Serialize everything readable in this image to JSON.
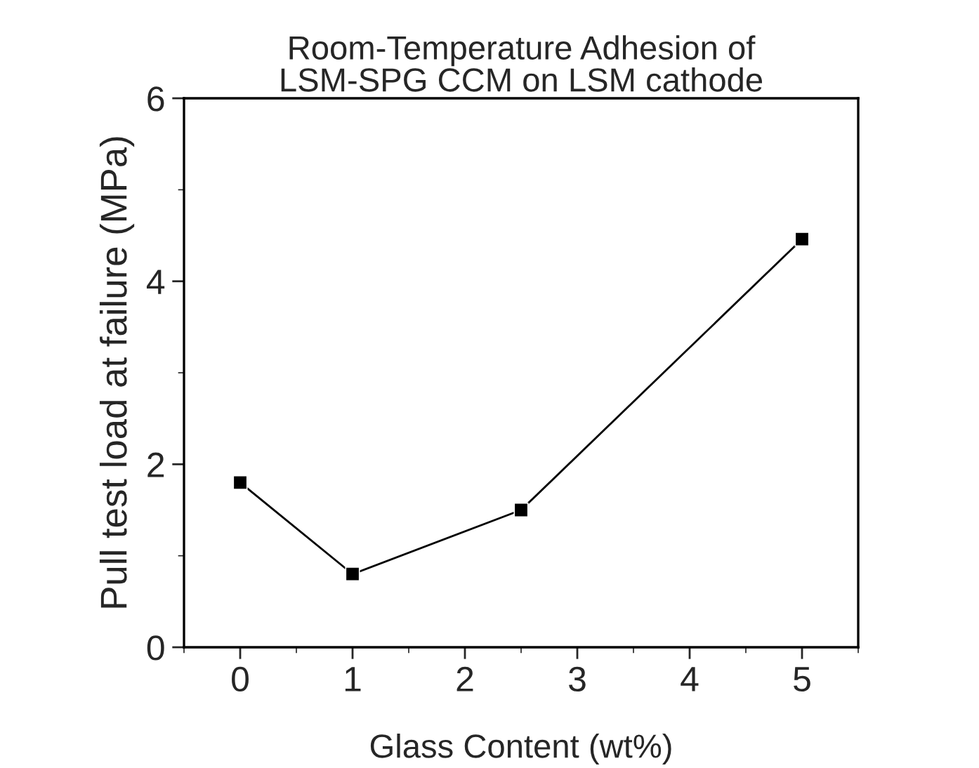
{
  "chart_data": {
    "type": "line",
    "title": "Room-Temperature Adhesion of\nLSM-SPG CCM on LSM cathode",
    "xlabel": "Glass Content (wt%)",
    "ylabel": "Pull test load at failure (MPa)",
    "x": [
      0,
      1,
      2.5,
      5
    ],
    "series": [
      {
        "color": "#000000",
        "values": [
          1.8,
          0.8,
          1.5,
          4.46
        ]
      }
    ],
    "xlim": [
      -0.5,
      5.5
    ],
    "xticks": [
      0,
      1,
      2,
      3,
      4,
      5
    ],
    "ylim": [
      0,
      6
    ],
    "yticks": [
      0,
      2,
      4,
      6
    ],
    "marker": "square",
    "line_style": "solid",
    "grid": false,
    "legend": false
  }
}
